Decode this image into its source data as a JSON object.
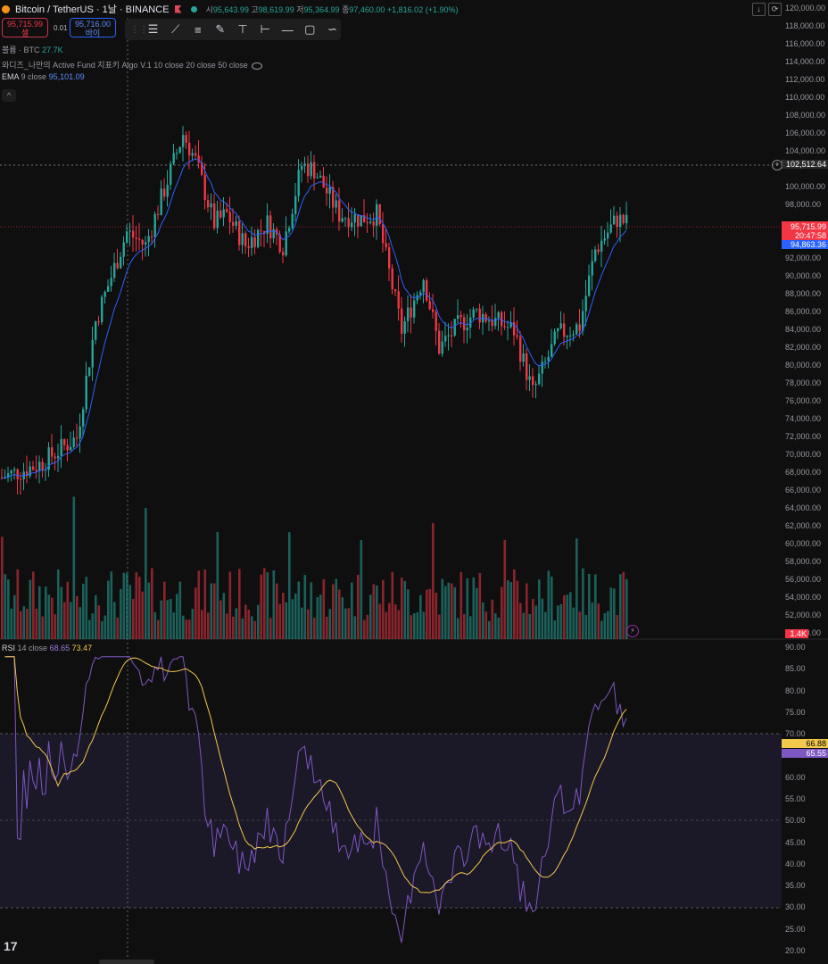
{
  "header": {
    "symbol": "Bitcoin / TetherUS · 1날 · BINANCE",
    "o_label": "시",
    "o": "95,643.99",
    "h_label": "고",
    "h": "98,619.99",
    "l_label": "저",
    "l": "95,364.99",
    "c_label": "종",
    "c": "97,460.00",
    "change": "+1,816.02 (+1.90%)"
  },
  "trade": {
    "sell_price": "95,715.99",
    "sell_label": "셀",
    "spread": "0.01",
    "buy_price": "95,716.00",
    "buy_label": "바이"
  },
  "toolbar": {
    "tools": [
      "horizontal-lines-icon",
      "trend-line-icon",
      "parallel-channel-icon",
      "brush-icon",
      "fib-icon",
      "range-icon",
      "line-tool-icon",
      "rectangle-icon",
      "curve-icon"
    ]
  },
  "legends": {
    "volume": "볼륨 · BTC",
    "volume_value": "27.7K",
    "indicator": "와디즈_나만의 Active Fund 지표키 Algo V.1 10 close 20 close 50 close",
    "ema": "EMA",
    "ema_params": "9 close",
    "ema_value": "95,101.09",
    "rsi": "RSI",
    "rsi_params": "14 close",
    "rsi_value": "68.65",
    "rsi_ma_value": "73.47"
  },
  "price_axis": [
    "120,000.00",
    "118,000.00",
    "116,000.00",
    "114,000.00",
    "112,000.00",
    "110,000.00",
    "108,000.00",
    "106,000.00",
    "104,000.00",
    "100,000.00",
    "98,000.00",
    "92,000.00",
    "90,000.00",
    "88,000.00",
    "86,000.00",
    "84,000.00",
    "82,000.00",
    "80,000.00",
    "78,000.00",
    "76,000.00",
    "74,000.00",
    "72,000.00",
    "70,000.00",
    "68,000.00",
    "66,000.00",
    "64,000.00",
    "62,000.00",
    "60,000.00",
    "58,000.00",
    "56,000.00",
    "54,000.00",
    "52,000.00",
    "50,000.00"
  ],
  "rsi_axis": [
    "90.00",
    "85.00",
    "80.00",
    "75.00",
    "70.00",
    "60.00",
    "55.00",
    "50.00",
    "45.00",
    "40.00",
    "35.00",
    "30.00",
    "25.00",
    "20.00"
  ],
  "tags": {
    "crosshair": "102,512.64",
    "last_price": "95,715.99",
    "countdown": "20:47:58",
    "ema": "94,863.36",
    "volume": "1.4K",
    "rsi_ma": "66.88",
    "rsi": "65.55"
  },
  "colors": {
    "up": "#26a69a",
    "down": "#f23645",
    "ema": "#2962ff",
    "rsi": "#7e57c2",
    "rsi_ma": "#f2c94c"
  }
}
